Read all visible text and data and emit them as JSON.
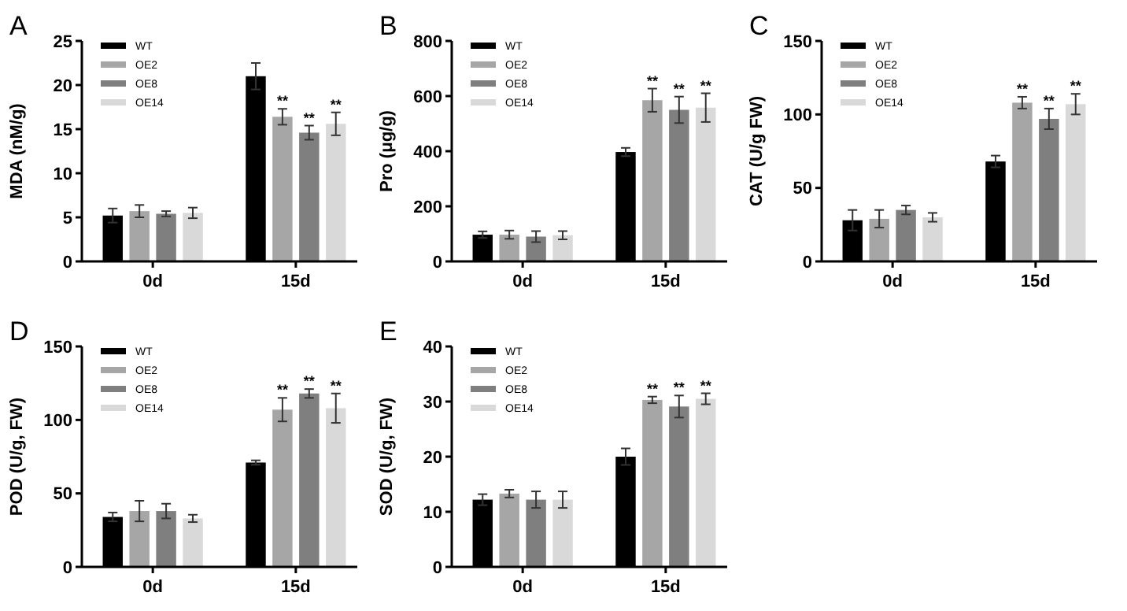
{
  "chart_data": [
    {
      "type": "bar",
      "title": "A",
      "ylabel": "MDA (nM/g)",
      "categories": [
        "0d",
        "15d"
      ],
      "ylim": [
        0,
        25
      ],
      "yticks": [
        0,
        5,
        10,
        15,
        20,
        25
      ],
      "legend": "top left",
      "grid": false,
      "series": [
        {
          "name": "WT",
          "color": "#000000",
          "values": [
            5.2,
            21.0
          ],
          "errors": [
            0.8,
            1.5
          ]
        },
        {
          "name": "OE2",
          "color": "#a6a6a6",
          "values": [
            5.7,
            16.4
          ],
          "errors": [
            0.7,
            0.9
          ],
          "value_labels": [
            null,
            "**"
          ]
        },
        {
          "name": "OE8",
          "color": "#7f7f7f",
          "values": [
            5.4,
            14.6
          ],
          "errors": [
            0.3,
            0.8
          ],
          "value_labels": [
            null,
            "**"
          ]
        },
        {
          "name": "OE14",
          "color": "#d9d9d9",
          "values": [
            5.5,
            15.6
          ],
          "errors": [
            0.6,
            1.3
          ],
          "value_labels": [
            null,
            "**"
          ]
        }
      ]
    },
    {
      "type": "bar",
      "title": "B",
      "ylabel": "Pro (μg/g)",
      "categories": [
        "0d",
        "15d"
      ],
      "ylim": [
        0,
        800
      ],
      "yticks": [
        0,
        200,
        400,
        600,
        800
      ],
      "legend": "top left",
      "grid": false,
      "series": [
        {
          "name": "WT",
          "color": "#000000",
          "values": [
            97,
            397
          ],
          "errors": [
            12,
            15
          ]
        },
        {
          "name": "OE2",
          "color": "#a6a6a6",
          "values": [
            97,
            585
          ],
          "errors": [
            15,
            42
          ],
          "value_labels": [
            null,
            "**"
          ]
        },
        {
          "name": "OE8",
          "color": "#7f7f7f",
          "values": [
            90,
            550
          ],
          "errors": [
            20,
            48
          ],
          "value_labels": [
            null,
            "**"
          ]
        },
        {
          "name": "OE14",
          "color": "#d9d9d9",
          "values": [
            95,
            558
          ],
          "errors": [
            15,
            52
          ],
          "value_labels": [
            null,
            "**"
          ]
        }
      ]
    },
    {
      "type": "bar",
      "title": "C",
      "ylabel": "CAT (U/g FW)",
      "categories": [
        "0d",
        "15d"
      ],
      "ylim": [
        0,
        150
      ],
      "yticks": [
        0,
        50,
        100,
        150
      ],
      "legend": "top left",
      "grid": false,
      "series": [
        {
          "name": "WT",
          "color": "#000000",
          "values": [
            28,
            68
          ],
          "errors": [
            7,
            4
          ]
        },
        {
          "name": "OE2",
          "color": "#a6a6a6",
          "values": [
            29,
            108
          ],
          "errors": [
            6,
            4
          ],
          "value_labels": [
            null,
            "**"
          ]
        },
        {
          "name": "OE8",
          "color": "#7f7f7f",
          "values": [
            35,
            97
          ],
          "errors": [
            3,
            7
          ],
          "value_labels": [
            null,
            "**"
          ]
        },
        {
          "name": "OE14",
          "color": "#d9d9d9",
          "values": [
            30,
            107
          ],
          "errors": [
            3,
            7
          ],
          "value_labels": [
            null,
            "**"
          ]
        }
      ]
    },
    {
      "type": "bar",
      "title": "D",
      "ylabel": "POD (U/g, FW)",
      "categories": [
        "0d",
        "15d"
      ],
      "ylim": [
        0,
        150
      ],
      "yticks": [
        0,
        50,
        100,
        150
      ],
      "legend": "top left",
      "grid": false,
      "series": [
        {
          "name": "WT",
          "color": "#000000",
          "values": [
            34,
            71
          ],
          "errors": [
            3,
            1.5
          ]
        },
        {
          "name": "OE2",
          "color": "#a6a6a6",
          "values": [
            38,
            107
          ],
          "errors": [
            7,
            8
          ],
          "value_labels": [
            null,
            "**"
          ]
        },
        {
          "name": "OE8",
          "color": "#7f7f7f",
          "values": [
            38,
            118
          ],
          "errors": [
            5,
            3
          ],
          "value_labels": [
            null,
            "**"
          ]
        },
        {
          "name": "OE14",
          "color": "#d9d9d9",
          "values": [
            33,
            108
          ],
          "errors": [
            2.5,
            10
          ],
          "value_labels": [
            null,
            "**"
          ]
        }
      ]
    },
    {
      "type": "bar",
      "title": "E",
      "ylabel": "SOD (U/g, FW)",
      "categories": [
        "0d",
        "15d"
      ],
      "ylim": [
        0,
        40
      ],
      "yticks": [
        0,
        10,
        20,
        30,
        40
      ],
      "legend": "top left",
      "grid": false,
      "series": [
        {
          "name": "WT",
          "color": "#000000",
          "values": [
            12.2,
            20
          ],
          "errors": [
            1,
            1.5
          ]
        },
        {
          "name": "OE2",
          "color": "#a6a6a6",
          "values": [
            13.3,
            30.3
          ],
          "errors": [
            0.7,
            0.6
          ],
          "value_labels": [
            null,
            "**"
          ]
        },
        {
          "name": "OE8",
          "color": "#7f7f7f",
          "values": [
            12.2,
            29.1
          ],
          "errors": [
            1.5,
            2
          ],
          "value_labels": [
            null,
            "**"
          ]
        },
        {
          "name": "OE14",
          "color": "#d9d9d9",
          "values": [
            12.2,
            30.5
          ],
          "errors": [
            1.5,
            1
          ],
          "value_labels": [
            null,
            "**"
          ]
        }
      ]
    }
  ]
}
